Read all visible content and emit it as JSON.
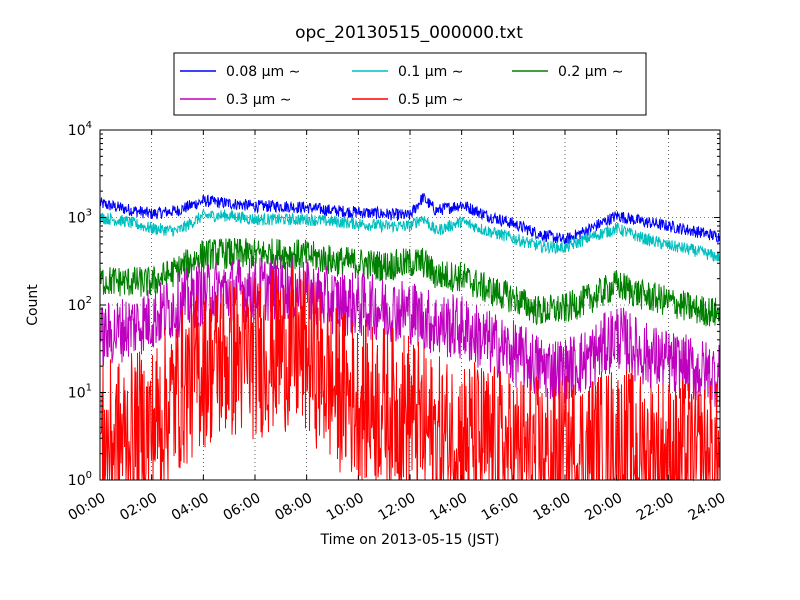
{
  "chart_data": {
    "type": "line",
    "title": "opc_20130515_000000.txt",
    "xlabel": "Time on 2013-05-15 (JST)",
    "ylabel": "Count",
    "yscale": "log",
    "xlim": [
      "00:00",
      "24:00"
    ],
    "ylim": [
      1,
      10000
    ],
    "grid": true,
    "legend_position": "top-center, outside plot",
    "x_ticks": [
      "00:00",
      "02:00",
      "04:00",
      "06:00",
      "08:00",
      "10:00",
      "12:00",
      "14:00",
      "16:00",
      "18:00",
      "20:00",
      "22:00",
      "24:00"
    ],
    "y_ticks": [
      {
        "base": "10",
        "exp": "0",
        "value": 1
      },
      {
        "base": "10",
        "exp": "1",
        "value": 10
      },
      {
        "base": "10",
        "exp": "2",
        "value": 100
      },
      {
        "base": "10",
        "exp": "3",
        "value": 1000
      },
      {
        "base": "10",
        "exp": "4",
        "value": 10000
      }
    ],
    "x": [
      "00:00",
      "01:00",
      "02:00",
      "03:00",
      "04:00",
      "05:00",
      "06:00",
      "07:00",
      "08:00",
      "09:00",
      "10:00",
      "11:00",
      "12:00",
      "12:30",
      "13:00",
      "14:00",
      "15:00",
      "16:00",
      "17:00",
      "18:00",
      "19:00",
      "20:00",
      "21:00",
      "22:00",
      "23:00",
      "24:00"
    ],
    "series": [
      {
        "name": "0.08 μm ∼",
        "color": "#0000ff",
        "values": [
          1450,
          1250,
          1100,
          1200,
          1550,
          1450,
          1350,
          1350,
          1300,
          1200,
          1150,
          1100,
          1050,
          1700,
          1200,
          1400,
          1050,
          850,
          650,
          550,
          750,
          1050,
          900,
          800,
          700,
          600
        ]
      },
      {
        "name": "0.1 μm ∼",
        "color": "#00bfbf",
        "values": [
          1000,
          900,
          750,
          700,
          1050,
          1050,
          950,
          950,
          950,
          900,
          850,
          800,
          800,
          1000,
          700,
          900,
          700,
          580,
          470,
          450,
          600,
          750,
          580,
          480,
          420,
          350
        ]
      },
      {
        "name": "0.2 μm ∼",
        "color": "#008000",
        "values": [
          190,
          185,
          180,
          250,
          380,
          390,
          380,
          390,
          370,
          320,
          300,
          280,
          300,
          310,
          220,
          210,
          150,
          120,
          85,
          90,
          120,
          170,
          130,
          110,
          90,
          80
        ]
      },
      {
        "name": "0.3 μm ∼",
        "color": "#bf00bf",
        "values": [
          42,
          55,
          70,
          100,
          140,
          150,
          150,
          160,
          140,
          110,
          100,
          90,
          85,
          70,
          60,
          55,
          38,
          28,
          20,
          18,
          25,
          45,
          28,
          22,
          18,
          16
        ]
      },
      {
        "name": "0.5 μm ∼",
        "color": "#ff0000",
        "values": [
          2.5,
          3,
          4,
          10,
          20,
          25,
          25,
          32,
          28,
          12,
          8,
          7,
          6,
          4,
          3,
          3,
          2.5,
          2,
          1.8,
          1.8,
          2,
          2.5,
          2,
          1.8,
          1.6,
          1.5
        ]
      }
    ]
  }
}
